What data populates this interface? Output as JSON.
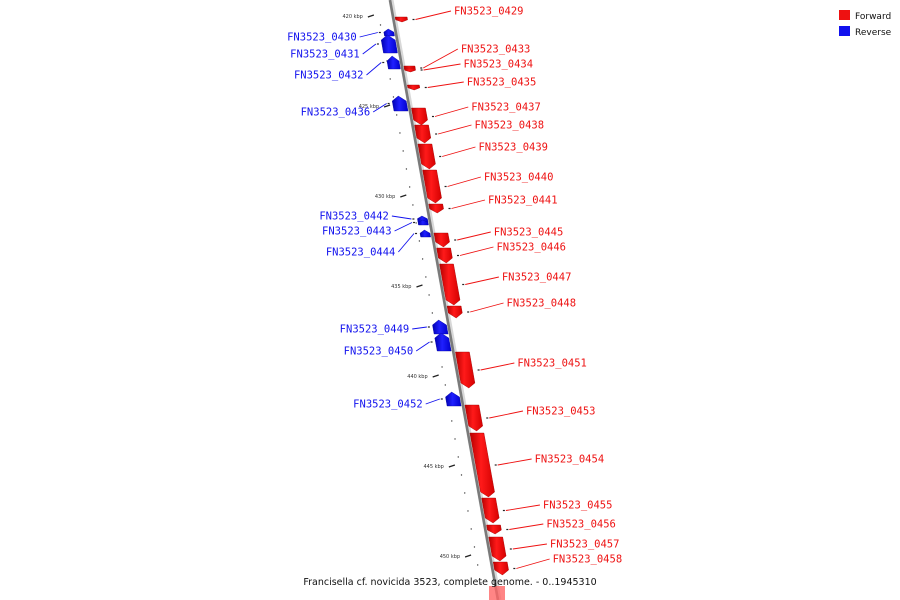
{
  "legend": [
    {
      "label": "Forward",
      "color": "#ee1111"
    },
    {
      "label": "Reverse",
      "color": "#1111ee"
    }
  ],
  "footer": "Francisella cf. novicida 3523, complete genome. - 0..1945310",
  "scale_labels": [
    "420 kbp",
    "425 kbp",
    "430 kbp",
    "435 kbp",
    "440 kbp",
    "445 kbp",
    "450 kbp"
  ],
  "genes": [
    {
      "id": "FN3523_0429",
      "strand": "forward"
    },
    {
      "id": "FN3523_0430",
      "strand": "reverse"
    },
    {
      "id": "FN3523_0431",
      "strand": "reverse"
    },
    {
      "id": "FN3523_0432",
      "strand": "reverse"
    },
    {
      "id": "FN3523_0433",
      "strand": "forward"
    },
    {
      "id": "FN3523_0434",
      "strand": "forward"
    },
    {
      "id": "FN3523_0435",
      "strand": "forward"
    },
    {
      "id": "FN3523_0436",
      "strand": "reverse"
    },
    {
      "id": "FN3523_0437",
      "strand": "forward"
    },
    {
      "id": "FN3523_0438",
      "strand": "forward"
    },
    {
      "id": "FN3523_0439",
      "strand": "forward"
    },
    {
      "id": "FN3523_0440",
      "strand": "forward"
    },
    {
      "id": "FN3523_0441",
      "strand": "forward"
    },
    {
      "id": "FN3523_0442",
      "strand": "reverse"
    },
    {
      "id": "FN3523_0443",
      "strand": "reverse"
    },
    {
      "id": "FN3523_0444",
      "strand": "reverse"
    },
    {
      "id": "FN3523_0445",
      "strand": "forward"
    },
    {
      "id": "FN3523_0446",
      "strand": "forward"
    },
    {
      "id": "FN3523_0447",
      "strand": "forward"
    },
    {
      "id": "FN3523_0448",
      "strand": "forward"
    },
    {
      "id": "FN3523_0449",
      "strand": "reverse"
    },
    {
      "id": "FN3523_0450",
      "strand": "reverse"
    },
    {
      "id": "FN3523_0451",
      "strand": "forward"
    },
    {
      "id": "FN3523_0452",
      "strand": "reverse"
    },
    {
      "id": "FN3523_0453",
      "strand": "forward"
    },
    {
      "id": "FN3523_0454",
      "strand": "forward"
    },
    {
      "id": "FN3523_0455",
      "strand": "forward"
    },
    {
      "id": "FN3523_0456",
      "strand": "forward"
    },
    {
      "id": "FN3523_0457",
      "strand": "forward"
    },
    {
      "id": "FN3523_0458",
      "strand": "forward"
    }
  ]
}
